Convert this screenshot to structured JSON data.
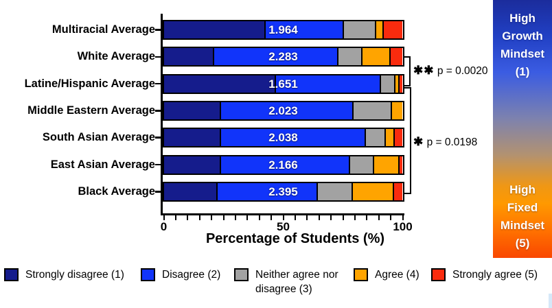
{
  "chart_data": {
    "type": "bar",
    "variant": "horizontal_stacked",
    "title": "",
    "xlabel": "Percentage of Students (%)",
    "ylabel": "",
    "xlim": [
      0,
      100
    ],
    "x_major_ticks": [
      "0",
      "50",
      "100"
    ],
    "x_minor_tick_step": 5,
    "grid": false,
    "legend_position": "bottom",
    "categories": [
      "Multiracial Average",
      "White Average",
      "Latine/Hispanic Average",
      "Middle Eastern Average",
      "South Asian Average",
      "East Asian Average",
      "Black Average"
    ],
    "bar_mean_labels": [
      "1.964",
      "2.283",
      "1.651",
      "2.023",
      "2.038",
      "2.166",
      "2.395"
    ],
    "series": [
      {
        "name": "Strongly disagree (1)",
        "color": "#151c8c",
        "values": [
          42,
          20.5,
          46.5,
          23.5,
          23.5,
          23.5,
          22
        ]
      },
      {
        "name": "Disagree (2)",
        "color": "#1134fa",
        "values": [
          33,
          52,
          44,
          55.5,
          60.5,
          54,
          42
        ]
      },
      {
        "name": "Neither agree nor disagree (3)",
        "color": "#a2a2a2",
        "values": [
          13.5,
          10,
          6,
          16,
          8.5,
          10,
          14.7
        ]
      },
      {
        "name": "Agree (4)",
        "color": "#ffa400",
        "values": [
          3,
          12,
          1.5,
          5,
          3.7,
          10.5,
          17
        ]
      },
      {
        "name": "Strongly agree (5)",
        "color": "#f92b0e",
        "values": [
          8.5,
          5.5,
          2,
          0,
          3.8,
          2,
          4.3
        ]
      }
    ],
    "annotations": [
      {
        "stars": "✱✱",
        "label": "p = 0.0020",
        "connects": [
          "White Average",
          "Latine/Hispanic Average"
        ]
      },
      {
        "stars": "✱",
        "label": "p = 0.0198",
        "connects": [
          "Latine/Hispanic Average",
          "Black Average"
        ]
      }
    ]
  },
  "colorbar": {
    "top_label": "High Growth Mindset (1)",
    "bottom_label": "High Fixed Mindset (5)",
    "top_color": "#1b2c9c",
    "bottom_color": "#f94700"
  }
}
